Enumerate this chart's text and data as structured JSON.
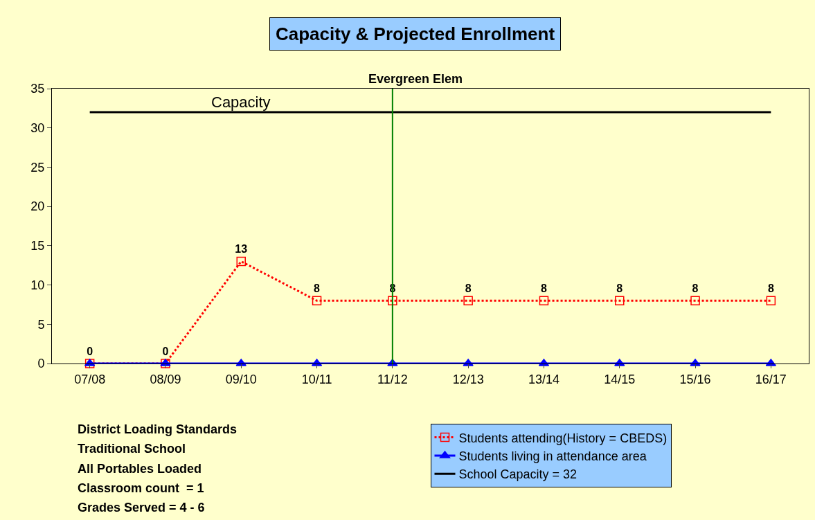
{
  "chart_data": {
    "type": "line",
    "title": "Capacity & Projected Enrollment",
    "subtitle": "Evergreen Elem",
    "categories": [
      "07/08",
      "08/09",
      "09/10",
      "10/11",
      "11/12",
      "12/13",
      "13/14",
      "14/15",
      "15/16",
      "16/17"
    ],
    "series": [
      {
        "name": "Students attending(History = CBEDS)",
        "color": "#ff0000",
        "marker": "square",
        "line_style": "dotted",
        "values": [
          0,
          0,
          13,
          8,
          8,
          8,
          8,
          8,
          8,
          8
        ],
        "value_labels": [
          "0",
          "0",
          "13",
          "8",
          "8",
          "8",
          "8",
          "8",
          "8",
          "8"
        ]
      },
      {
        "name": "Students living in attendance area",
        "color": "#0000ff",
        "marker": "triangle",
        "line_style": "solid",
        "values": [
          0,
          0,
          0,
          0,
          0,
          0,
          0,
          0,
          0,
          0
        ]
      },
      {
        "name": "School Capacity = 32",
        "color": "#000000",
        "marker": "none",
        "line_style": "solid",
        "values": [
          32,
          32,
          32,
          32,
          32,
          32,
          32,
          32,
          32,
          32
        ]
      }
    ],
    "ylim": [
      0,
      35
    ],
    "yticks": [
      0,
      5,
      10,
      15,
      20,
      25,
      30,
      35
    ],
    "grid": false,
    "legend": "bottom right",
    "ref_lines": [
      {
        "axis": "x",
        "value": "11/12",
        "color": "#008000"
      }
    ],
    "annotations": [
      {
        "text": "Capacity",
        "x": "09/10",
        "y": 32
      },
      "District Loading Standards",
      "Traditional School",
      "All Portables Loaded",
      "Classroom count  = 1",
      "Grades Served = 4 - 6"
    ]
  }
}
